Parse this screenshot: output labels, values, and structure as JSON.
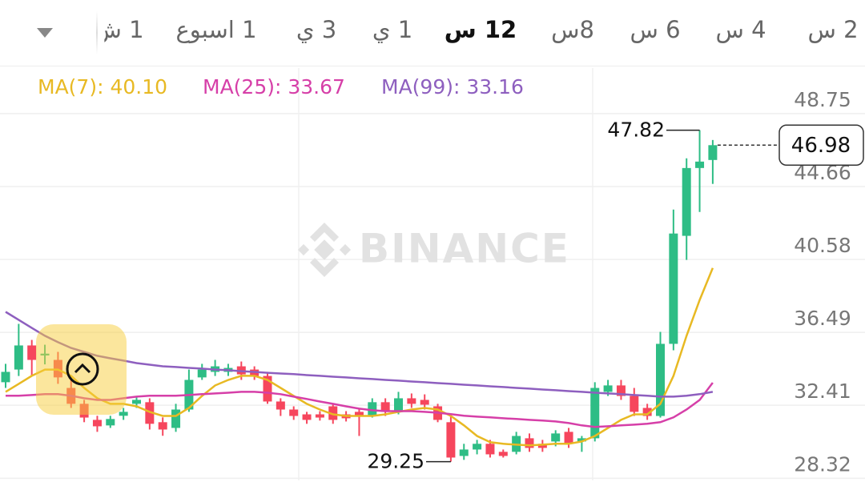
{
  "timeframes": [
    {
      "label": "1 ش",
      "selected": false
    },
    {
      "label": "1 اسبوع",
      "selected": false
    },
    {
      "label": "3 ي",
      "selected": false
    },
    {
      "label": "1 ي",
      "selected": false
    },
    {
      "label": "12 س",
      "selected": true
    },
    {
      "label": "8س",
      "selected": false
    },
    {
      "label": "6 س",
      "selected": false
    },
    {
      "label": "4 س",
      "selected": false
    },
    {
      "label": "2 س",
      "selected": false
    }
  ],
  "chart_data": {
    "type": "candlestick",
    "watermark": "BINANCE",
    "up_color": "#2ebd85",
    "down_color": "#f6465d",
    "grid": true,
    "ylim": [
      28.2,
      51.3
    ],
    "yticks": [
      48.75,
      44.66,
      40.58,
      36.49,
      32.41,
      28.32
    ],
    "open": [
      33.7,
      34.41,
      35.76,
      35.2,
      34.95,
      33.38,
      32.49,
      31.59,
      31.28,
      31.82,
      32.49,
      32.58,
      31.46,
      31.14,
      32.17,
      33.97,
      34.28,
      34.28,
      34.59,
      34.41,
      34.05,
      32.62,
      32.17,
      31.9,
      31.9,
      32.35,
      31.9,
      32.04,
      31.81,
      32.58,
      32.04,
      32.8,
      32.71,
      32.35,
      31.46,
      29.57,
      29.93,
      30.25,
      29.8,
      29.8,
      30.56,
      30.25,
      30.38,
      30.92,
      30.38,
      30.56,
      33.16,
      33.52,
      32.93,
      32.26,
      31.81,
      35.85,
      41.9,
      45.7,
      46.15
    ],
    "high": [
      34.73,
      36.97,
      36.07,
      35.8,
      35.4,
      33.83,
      32.71,
      31.82,
      31.82,
      32.26,
      32.85,
      32.8,
      31.73,
      32.49,
      34.41,
      34.73,
      34.95,
      34.73,
      34.86,
      34.59,
      34.28,
      32.8,
      32.35,
      32.04,
      32.08,
      32.49,
      32.08,
      32.26,
      32.8,
      32.8,
      33.16,
      33.07,
      33.02,
      32.49,
      31.81,
      30.25,
      30.47,
      30.47,
      29.93,
      30.92,
      30.83,
      30.47,
      31.01,
      31.14,
      30.69,
      33.7,
      33.83,
      33.83,
      33.38,
      32.49,
      36.52,
      43.37,
      46.24,
      47.82,
      47.27
    ],
    "low": [
      33.38,
      34.05,
      34.05,
      34.7,
      33.61,
      32.26,
      31.46,
      30.92,
      31.14,
      31.59,
      32.26,
      31.05,
      30.7,
      30.92,
      32.04,
      33.83,
      34.05,
      34.05,
      33.83,
      33.83,
      32.49,
      31.81,
      31.59,
      31.37,
      31.55,
      31.37,
      31.5,
      30.69,
      31.72,
      31.81,
      31.9,
      32.26,
      32.17,
      31.46,
      29.25,
      29.35,
      29.66,
      29.48,
      29.48,
      29.66,
      29.8,
      29.8,
      30.11,
      30.02,
      29.8,
      30.38,
      32.93,
      32.71,
      31.81,
      31.59,
      31.72,
      35.49,
      40.55,
      43.24,
      44.81
    ],
    "close": [
      34.28,
      35.76,
      34.95,
      35.3,
      33.97,
      32.49,
      31.72,
      31.23,
      31.64,
      32.04,
      32.71,
      31.37,
      31.05,
      32.17,
      33.83,
      34.41,
      34.59,
      34.5,
      34.14,
      34.05,
      32.62,
      32.17,
      31.81,
      31.59,
      31.72,
      31.59,
      31.68,
      31.81,
      32.58,
      32.04,
      32.8,
      32.49,
      32.44,
      31.59,
      29.48,
      29.93,
      30.25,
      29.66,
      29.57,
      30.69,
      30.02,
      30.02,
      30.83,
      30.25,
      30.56,
      33.38,
      33.52,
      32.93,
      32.04,
      31.81,
      35.85,
      42.03,
      45.7,
      46.06,
      46.98
    ],
    "series": [
      {
        "name": "MA(7): 40.10",
        "color": "#e8b923",
        "values": [
          33.16,
          33.61,
          34.06,
          34.41,
          34.41,
          34.06,
          33.38,
          32.8,
          32.49,
          32.49,
          32.35,
          32.04,
          31.81,
          31.81,
          32.26,
          32.93,
          33.52,
          33.83,
          34.06,
          34.06,
          33.83,
          33.38,
          32.93,
          32.49,
          32.17,
          31.9,
          31.81,
          31.81,
          31.81,
          31.9,
          32.04,
          32.17,
          32.26,
          32.17,
          31.81,
          31.28,
          30.69,
          30.34,
          30.25,
          30.2,
          30.16,
          30.2,
          30.25,
          30.25,
          30.38,
          30.69,
          31.14,
          31.59,
          31.9,
          31.9,
          32.49,
          34.06,
          36.3,
          38.31,
          40.1
        ]
      },
      {
        "name": "MA(25): 33.67",
        "color": "#d63fa8",
        "values": [
          32.94,
          32.94,
          32.98,
          33.03,
          33.03,
          32.94,
          32.8,
          32.71,
          32.71,
          32.8,
          32.89,
          32.94,
          32.94,
          32.94,
          32.98,
          33.03,
          33.07,
          33.11,
          33.16,
          33.16,
          33.11,
          33.03,
          32.89,
          32.76,
          32.62,
          32.49,
          32.35,
          32.22,
          32.13,
          32.08,
          32.08,
          32.08,
          32.04,
          31.99,
          31.91,
          31.82,
          31.77,
          31.73,
          31.68,
          31.64,
          31.59,
          31.55,
          31.5,
          31.41,
          31.28,
          31.19,
          31.23,
          31.28,
          31.32,
          31.37,
          31.46,
          31.73,
          32.17,
          32.71,
          33.67
        ]
      },
      {
        "name": "MA(99): 33.16",
        "color": "#8e5fbf",
        "values": [
          37.64,
          37.19,
          36.74,
          36.3,
          35.94,
          35.62,
          35.4,
          35.18,
          35.04,
          34.91,
          34.77,
          34.68,
          34.59,
          34.55,
          34.5,
          34.46,
          34.41,
          34.37,
          34.32,
          34.28,
          34.23,
          34.19,
          34.15,
          34.1,
          34.06,
          34.01,
          33.97,
          33.92,
          33.88,
          33.83,
          33.79,
          33.74,
          33.7,
          33.65,
          33.61,
          33.56,
          33.52,
          33.47,
          33.43,
          33.38,
          33.34,
          33.29,
          33.25,
          33.2,
          33.16,
          33.11,
          33.07,
          33.03,
          32.98,
          32.94,
          32.89,
          32.89,
          32.94,
          33.03,
          33.16
        ]
      }
    ]
  }
}
